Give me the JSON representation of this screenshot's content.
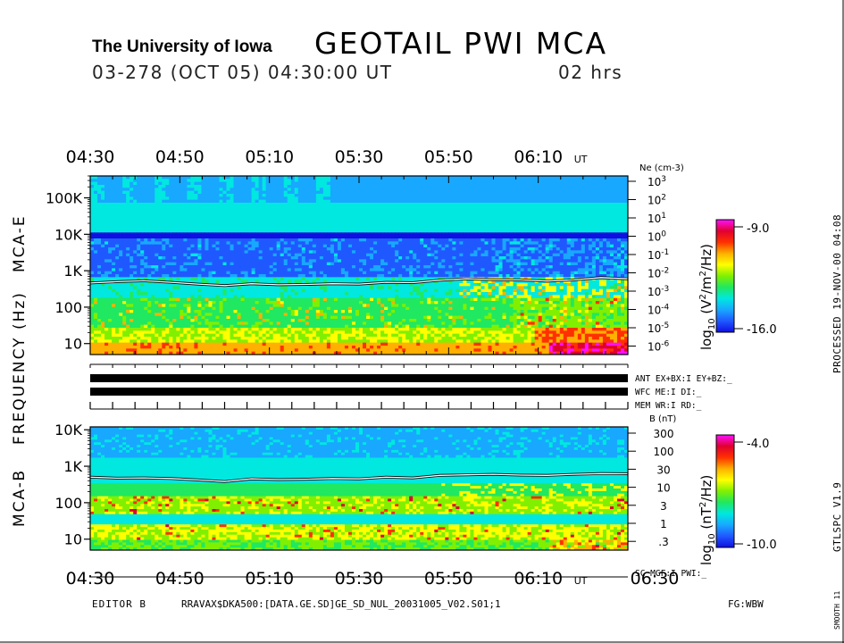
{
  "header": {
    "institution": "The University of Iowa",
    "title": "GEOTAIL PWI MCA",
    "date_line": "03-278 (OCT 05) 04:30:00 UT",
    "duration": "02 hrs"
  },
  "side_text": {
    "processed": "PROCESSED 19-NOV-00 04:08",
    "version": "GTLSPC V1.9",
    "smooth": "SMOOTH 11"
  },
  "footer": {
    "editor": "EDITOR B",
    "path": "RRAVAX$DKA500:[DATA.GE.SD]GE_SD_NUL_20031005_V02.S01;1",
    "flag": "FG:WBW"
  },
  "status_rows": {
    "ant": "ANT EX+BX:I EY+BZ:_",
    "wfc": "WFC ME:I DI:_",
    "mem": "MEM WR:I RD:_",
    "sc": "SC MGF:I PWI:_"
  },
  "colors": {
    "background": "#ffffff",
    "ink": "#000000",
    "trace": "#ffffff",
    "colormap": [
      "#1010e0",
      "#2058ff",
      "#18a8ff",
      "#00e8e0",
      "#20e860",
      "#80f000",
      "#ffff00",
      "#ffb000",
      "#ff3000",
      "#e00030",
      "#ff10ff"
    ]
  },
  "chart_data": {
    "type": "heatmap",
    "time_axis": {
      "start": "04:30",
      "end": "06:30",
      "tick_labels": [
        "04:30",
        "04:50",
        "05:10",
        "05:30",
        "05:50",
        "06:10"
      ],
      "end_label": "06:30",
      "unit": "UT"
    },
    "ylabel_shared": "FREQUENCY (Hz)",
    "panels": [
      {
        "name": "MCA-E",
        "y_ticks": [
          "100K",
          "10K",
          "1K",
          "100",
          "10"
        ],
        "y_range_hz": [
          5,
          400000
        ],
        "right_axis": {
          "label": "Ne (cm-3)",
          "ticks": [
            "10^3",
            "10^2",
            "10^1",
            "10^0",
            "10^-1",
            "10^-2",
            "10^-3",
            "10^-4",
            "10^-5",
            "10^-6"
          ]
        },
        "colorbar": {
          "label": "log10 (V2/m2/Hz)",
          "max": "-9.0",
          "min": "-16.0",
          "range": [
            -16.0,
            -9.0
          ]
        },
        "band_10k_intensity": -15.2,
        "trace_hz": [
          460,
          500,
          530,
          480,
          430,
          390,
          440,
          410,
          420,
          440,
          430,
          480,
          470,
          550,
          600,
          570,
          560,
          520,
          560,
          650,
          600
        ]
      },
      {
        "name": "MCA-B",
        "y_ticks": [
          "10K",
          "1K",
          "100",
          "10"
        ],
        "y_range_hz": [
          5,
          12000
        ],
        "right_axis": {
          "label": "B (nT)",
          "ticks": [
            "300",
            "100",
            "30",
            "10",
            "3",
            "1",
            ".3"
          ]
        },
        "colorbar": {
          "label": "log10 (nT2/Hz)",
          "max": "-4.0",
          "min": "-10.0",
          "range": [
            -10.0,
            -4.0
          ]
        },
        "trace_hz": [
          500,
          470,
          480,
          460,
          420,
          380,
          450,
          430,
          440,
          460,
          450,
          500,
          480,
          560,
          580,
          600,
          570,
          560,
          600,
          630,
          620
        ]
      }
    ]
  }
}
